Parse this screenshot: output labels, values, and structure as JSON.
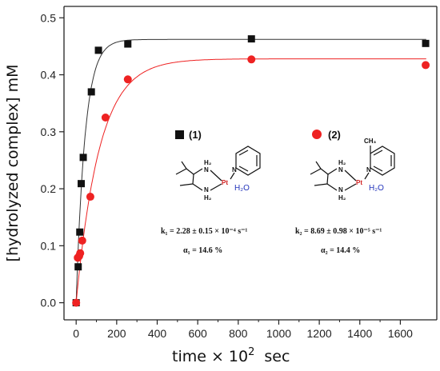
{
  "chart_data": {
    "type": "scatter",
    "xlabel": "time × 10",
    "xlabel_sup": "2",
    "xlabel_unit": "sec",
    "ylabel": "[hydrolyzed complex]  mM",
    "xlim": [
      -60,
      1780
    ],
    "ylim": [
      -0.03,
      0.52
    ],
    "xticks": [
      0,
      200,
      400,
      600,
      800,
      1000,
      1200,
      1400,
      1600
    ],
    "yticks": [
      0.0,
      0.1,
      0.2,
      0.3,
      0.4,
      0.5
    ],
    "grid": false,
    "series": [
      {
        "name": "(1)",
        "color": "#111111",
        "marker": "square",
        "x": [
          0,
          10,
          18,
          25,
          35,
          75,
          110,
          255,
          865,
          1725
        ],
        "y": [
          0.0,
          0.063,
          0.124,
          0.209,
          0.255,
          0.37,
          0.443,
          0.454,
          0.463,
          0.455
        ],
        "fit_k": 0.0228,
        "fit_ymax": 0.462
      },
      {
        "name": "(2)",
        "color": "#ee2222",
        "marker": "circle",
        "x": [
          0,
          8,
          15,
          20,
          30,
          70,
          145,
          255,
          865,
          1725
        ],
        "y": [
          0.0,
          0.079,
          0.082,
          0.087,
          0.109,
          0.186,
          0.325,
          0.392,
          0.427,
          0.417
        ],
        "fit_k": 0.00869,
        "fit_ymax": 0.428
      }
    ],
    "annotations": {
      "compound1": {
        "legend": "(1)",
        "k": "k₁ = 2.28 ± 0.15 × 10⁻⁴ s⁻¹",
        "alpha": "α₁ = 14.6 %"
      },
      "compound2": {
        "legend": "(2)",
        "k": "k₂ = 8.69 ± 0.98 × 10⁻⁵ s⁻¹",
        "alpha": "α₂ = 14.4 %",
        "methyl": "CH₃"
      },
      "structure": {
        "h2n_top": "H₂",
        "n_top": "N",
        "h2n_bottom": "N",
        "h2_bottom": "H₂",
        "pt": "Pt",
        "py_n": "N",
        "water": "H₂O"
      }
    }
  }
}
